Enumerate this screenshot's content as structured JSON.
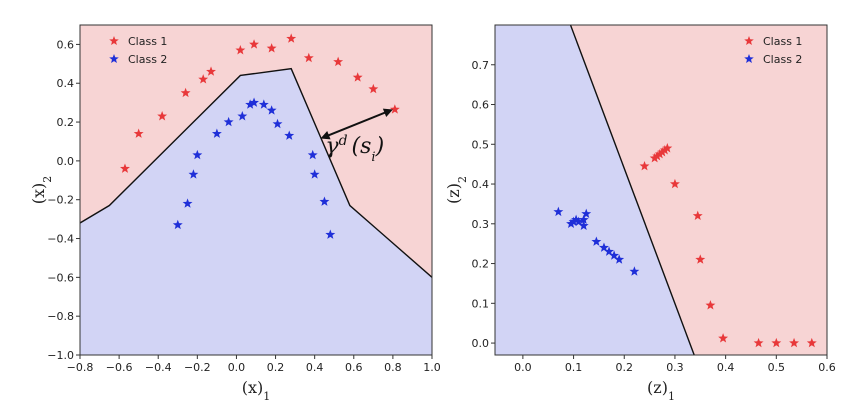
{
  "chart_data": [
    {
      "type": "scatter",
      "background": "decision-regions",
      "xlabel": "(x)",
      "xlabel_sub": "1",
      "ylabel": "(x)",
      "ylabel_sub": "2",
      "xlim": [
        -0.8,
        1.0
      ],
      "ylim": [
        -1.0,
        0.7
      ],
      "xticks": [
        "−0.8",
        "−0.6",
        "−0.4",
        "−0.2",
        "0.0",
        "0.2",
        "0.4",
        "0.6",
        "0.8",
        "1.0"
      ],
      "xtick_values": [
        -0.8,
        -0.6,
        -0.4,
        -0.2,
        0.0,
        0.2,
        0.4,
        0.6,
        0.8,
        1.0
      ],
      "yticks": [
        "−1.0",
        "−0.8",
        "−0.6",
        "−0.4",
        "−0.2",
        "0.0",
        "0.2",
        "0.4",
        "0.6"
      ],
      "ytick_values": [
        -1.0,
        -0.8,
        -0.6,
        -0.4,
        -0.2,
        0.0,
        0.2,
        0.4,
        0.6
      ],
      "legend_position": "top-left",
      "region_colors": {
        "upper": "#f7d4d4",
        "lower": "#d2d4f5"
      },
      "boundary": {
        "x": [
          -0.8,
          -0.65,
          0.02,
          0.28,
          0.58,
          1.0
        ],
        "y": [
          -0.32,
          -0.23,
          0.44,
          0.475,
          -0.23,
          -0.6
        ]
      },
      "annotation": {
        "text": "γ",
        "superscript": "d",
        "argument": "(s",
        "argument_sub": "i",
        "argument_close": ")",
        "arrow_from": [
          0.43,
          0.115
        ],
        "arrow_to": [
          0.8,
          0.265
        ]
      },
      "series": [
        {
          "name": "Class 1",
          "color": "#e8383a",
          "marker": "star",
          "x": [
            -0.57,
            -0.5,
            -0.38,
            -0.26,
            -0.17,
            -0.13,
            0.02,
            0.09,
            0.18,
            0.28,
            0.37,
            0.52,
            0.62,
            0.7,
            0.81
          ],
          "y": [
            -0.04,
            0.14,
            0.23,
            0.35,
            0.42,
            0.46,
            0.57,
            0.6,
            0.58,
            0.63,
            0.53,
            0.51,
            0.43,
            0.37,
            0.265
          ]
        },
        {
          "name": "Class 2",
          "color": "#1f2fd8",
          "marker": "star",
          "x": [
            -0.3,
            -0.25,
            -0.22,
            -0.2,
            -0.1,
            -0.04,
            0.03,
            0.07,
            0.09,
            0.14,
            0.18,
            0.21,
            0.27,
            0.39,
            0.4,
            0.45,
            0.48
          ],
          "y": [
            -0.33,
            -0.22,
            -0.07,
            0.03,
            0.14,
            0.2,
            0.23,
            0.29,
            0.3,
            0.29,
            0.26,
            0.19,
            0.13,
            0.03,
            -0.07,
            -0.21,
            -0.38
          ]
        }
      ]
    },
    {
      "type": "scatter",
      "background": "decision-regions",
      "xlabel": "(z)",
      "xlabel_sub": "1",
      "ylabel": "(z)",
      "ylabel_sub": "2",
      "xlim": [
        -0.055,
        0.6
      ],
      "ylim": [
        -0.03,
        0.8
      ],
      "xticks": [
        "0.0",
        "0.1",
        "0.2",
        "0.3",
        "0.4",
        "0.5",
        "0.6"
      ],
      "xtick_values": [
        0.0,
        0.1,
        0.2,
        0.3,
        0.4,
        0.5,
        0.6
      ],
      "yticks": [
        "0.0",
        "0.1",
        "0.2",
        "0.3",
        "0.4",
        "0.5",
        "0.6",
        "0.7"
      ],
      "ytick_values": [
        0.0,
        0.1,
        0.2,
        0.3,
        0.4,
        0.5,
        0.6,
        0.7
      ],
      "legend_position": "top-right",
      "region_colors": {
        "left": "#d2d4f5",
        "right": "#f7d4d4"
      },
      "boundary": {
        "x": [
          0.094,
          0.338
        ],
        "y": [
          0.8,
          -0.03
        ]
      },
      "series": [
        {
          "name": "Class 1",
          "color": "#e8383a",
          "marker": "star",
          "x": [
            0.24,
            0.26,
            0.265,
            0.27,
            0.275,
            0.28,
            0.285,
            0.3,
            0.345,
            0.35,
            0.37,
            0.395,
            0.465,
            0.5,
            0.535,
            0.57
          ],
          "y": [
            0.445,
            0.465,
            0.47,
            0.475,
            0.48,
            0.485,
            0.49,
            0.4,
            0.32,
            0.21,
            0.095,
            0.012,
            0.0,
            0.0,
            0.0,
            0.0
          ]
        },
        {
          "name": "Class 2",
          "color": "#1f2fd8",
          "marker": "star",
          "x": [
            0.07,
            0.095,
            0.1,
            0.105,
            0.11,
            0.12,
            0.125,
            0.12,
            0.145,
            0.16,
            0.17,
            0.18,
            0.19,
            0.22
          ],
          "y": [
            0.33,
            0.3,
            0.305,
            0.31,
            0.305,
            0.31,
            0.325,
            0.295,
            0.255,
            0.24,
            0.23,
            0.22,
            0.21,
            0.18
          ]
        }
      ]
    }
  ]
}
